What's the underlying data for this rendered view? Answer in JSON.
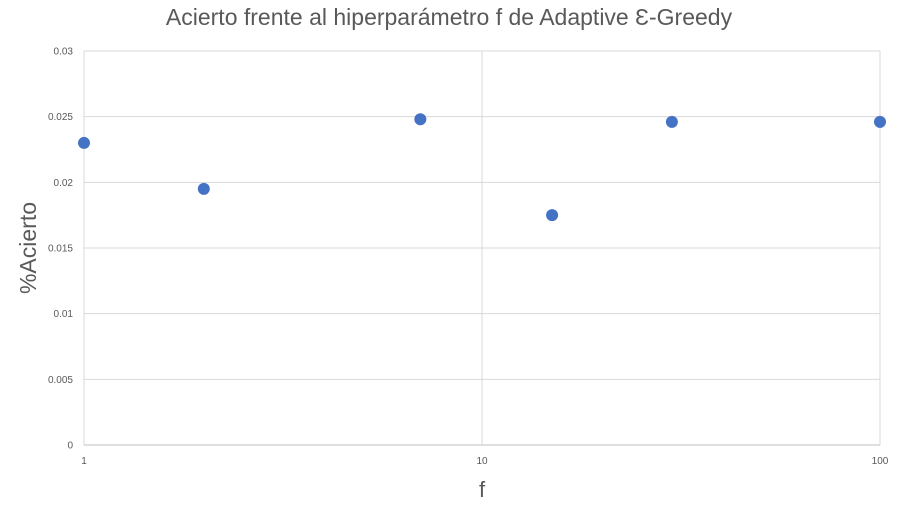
{
  "chart_data": {
    "type": "scatter",
    "title": "Acierto frente al hiperparámetro f de Adaptive Ɛ-Greedy",
    "xlabel": "f",
    "ylabel": "%Acierto",
    "x_scale": "log",
    "xlim": [
      1,
      100
    ],
    "ylim": [
      0,
      0.03
    ],
    "x_ticks": [
      "1",
      "10",
      "100"
    ],
    "y_ticks": [
      "0",
      "0.005",
      "0.01",
      "0.015",
      "0.02",
      "0.025",
      "0.03"
    ],
    "grid": true,
    "legend": "none",
    "series": [
      {
        "color": "#4472C4",
        "points": [
          {
            "x": 1,
            "y": 0.023
          },
          {
            "x": 2,
            "y": 0.0195
          },
          {
            "x": 7,
            "y": 0.0248
          },
          {
            "x": 15,
            "y": 0.0175
          },
          {
            "x": 30,
            "y": 0.0246
          },
          {
            "x": 100,
            "y": 0.0246
          }
        ]
      }
    ]
  },
  "colors": {
    "marker": "#4472C4",
    "grid": "#d9d9d9",
    "text": "#595959"
  }
}
